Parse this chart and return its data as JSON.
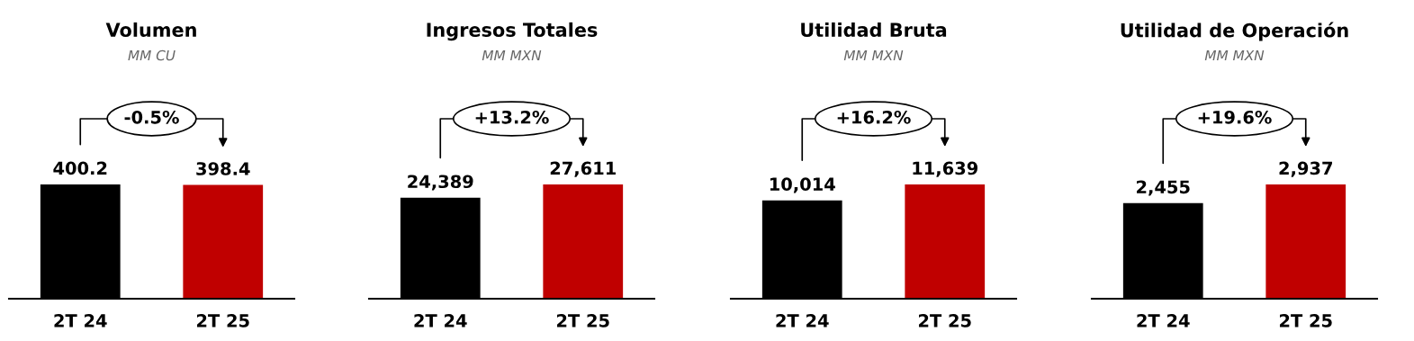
{
  "chart_data": [
    {
      "type": "bar",
      "title": "Volumen",
      "subtitle": "MM CU",
      "categories": [
        "2T 24",
        "2T 25"
      ],
      "values": [
        400.2,
        398.4
      ],
      "colors": [
        "#000000",
        "#c00000"
      ],
      "value_labels": [
        "400.2",
        "398.4"
      ],
      "annotations": [
        "-0.5%"
      ]
    },
    {
      "type": "bar",
      "title": "Ingresos Totales",
      "subtitle": "MM MXN",
      "categories": [
        "2T 24",
        "2T 25"
      ],
      "values": [
        24389,
        27611
      ],
      "colors": [
        "#000000",
        "#c00000"
      ],
      "value_labels": [
        "24,389",
        "27,611"
      ],
      "annotations": [
        "+13.2%"
      ]
    },
    {
      "type": "bar",
      "title": "Utilidad Bruta",
      "subtitle": "MM MXN",
      "categories": [
        "2T 24",
        "2T 25"
      ],
      "values": [
        10014,
        11639
      ],
      "colors": [
        "#000000",
        "#c00000"
      ],
      "value_labels": [
        "10,014",
        "11,639"
      ],
      "annotations": [
        "+16.2%"
      ]
    },
    {
      "type": "bar",
      "title": "Utilidad de Operación",
      "subtitle": "MM MXN",
      "categories": [
        "2T 24",
        "2T 25"
      ],
      "values": [
        2455,
        2937
      ],
      "colors": [
        "#000000",
        "#c00000"
      ],
      "value_labels": [
        "2,455",
        "2,937"
      ],
      "annotations": [
        "+19.6%"
      ]
    }
  ]
}
